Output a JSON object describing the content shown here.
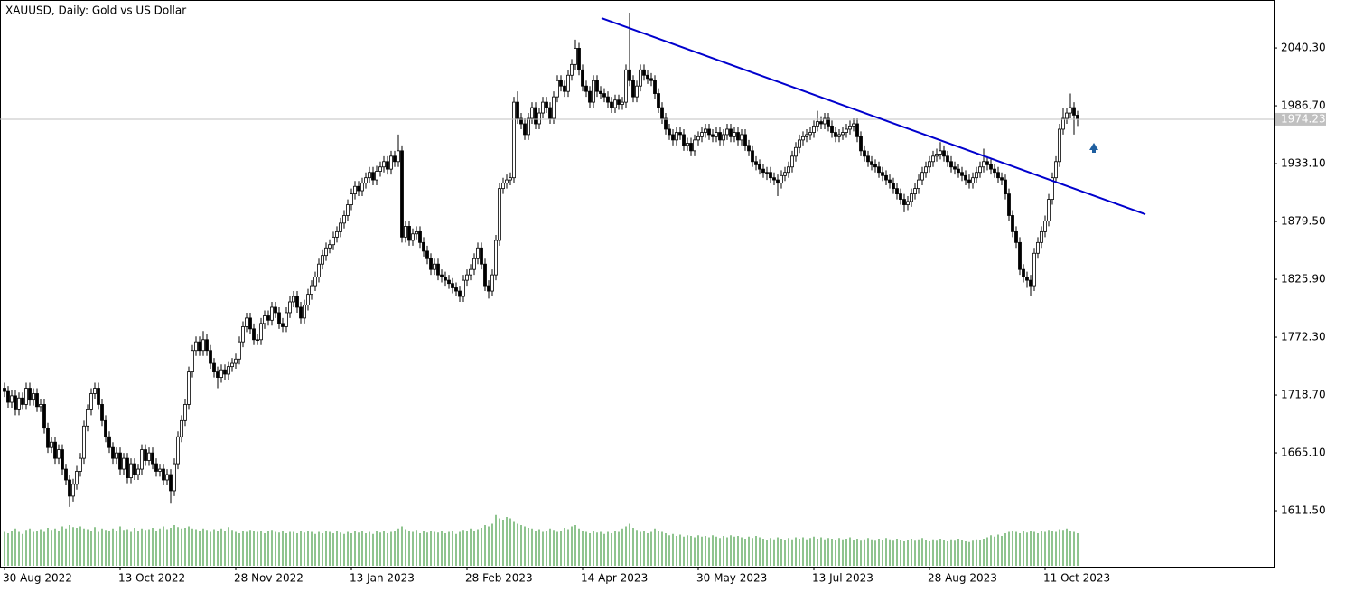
{
  "chart_data": {
    "type": "candlestick",
    "title": "XAUUSD, Daily:  Gold vs US Dollar",
    "open": [
      1725,
      1722,
      1712,
      1718,
      1705,
      1716,
      1710,
      1725,
      1714,
      1720,
      1708,
      1710,
      1688,
      1670,
      1675,
      1660,
      1668,
      1650,
      1640,
      1625,
      1636,
      1648,
      1660,
      1690,
      1705,
      1720,
      1725,
      1710,
      1695,
      1680,
      1670,
      1660,
      1665,
      1650,
      1660,
      1642,
      1655,
      1645,
      1650,
      1668,
      1658,
      1665,
      1655,
      1648,
      1650,
      1640,
      1645,
      1630,
      1655,
      1680,
      1695,
      1710,
      1740,
      1760,
      1768,
      1760,
      1770,
      1760,
      1748,
      1740,
      1735,
      1742,
      1738,
      1745,
      1748,
      1752,
      1768,
      1782,
      1790,
      1780,
      1770,
      1770,
      1785,
      1792,
      1788,
      1800,
      1795,
      1785,
      1782,
      1795,
      1805,
      1810,
      1800,
      1790,
      1802,
      1812,
      1820,
      1828,
      1840,
      1848,
      1855,
      1858,
      1865,
      1870,
      1878,
      1885,
      1895,
      1905,
      1912,
      1908,
      1915,
      1920,
      1925,
      1918,
      1926,
      1930,
      1935,
      1928,
      1940,
      1935,
      1945,
      1865,
      1875,
      1862,
      1868,
      1870,
      1860,
      1852,
      1845,
      1835,
      1840,
      1830,
      1828,
      1825,
      1822,
      1818,
      1815,
      1810,
      1825,
      1830,
      1835,
      1845,
      1855,
      1840,
      1820,
      1815,
      1830,
      1862,
      1910,
      1915,
      1918,
      1920,
      1990,
      1975,
      1970,
      1960,
      1975,
      1985,
      1970,
      1980,
      1990,
      1985,
      1975,
      1995,
      2010,
      2005,
      2000,
      2015,
      2025,
      2040,
      2020,
      2005,
      2000,
      1990,
      2010,
      2000,
      1998,
      1995,
      1990,
      1985,
      1992,
      1988,
      1990,
      2020,
      2010,
      1995,
      2005,
      2020,
      2015,
      2012,
      2010,
      1998,
      1985,
      1975,
      1965,
      1960,
      1955,
      1962,
      1960,
      1950,
      1952,
      1945,
      1955,
      1958,
      1962,
      1965,
      1960,
      1958,
      1962,
      1955,
      1960,
      1965,
      1958,
      1962,
      1955,
      1960,
      1950,
      1945,
      1935,
      1932,
      1928,
      1925,
      1925,
      1920,
      1918,
      1915,
      1922,
      1925,
      1930,
      1940,
      1948,
      1955,
      1958,
      1960,
      1962,
      1968,
      1972,
      1970,
      1975,
      1968,
      1962,
      1958,
      1960,
      1962,
      1965,
      1968,
      1970,
      1958,
      1945,
      1940,
      1935,
      1932,
      1930,
      1925,
      1922,
      1918,
      1915,
      1910,
      1905,
      1900,
      1895,
      1898,
      1905,
      1910,
      1918,
      1925,
      1930,
      1935,
      1940,
      1942,
      1945,
      1940,
      1935,
      1930,
      1928,
      1925,
      1922,
      1918,
      1915,
      1920,
      1925,
      1930,
      1935,
      1932,
      1928,
      1925,
      1920,
      1918,
      1905,
      1885,
      1870,
      1860,
      1835,
      1828,
      1825,
      1820,
      1850,
      1860,
      1870,
      1880,
      1900,
      1920,
      1935,
      1965,
      1975,
      1980,
      1985,
      1978
    ],
    "high": [
      1730,
      1727,
      1723,
      1723,
      1721,
      1721,
      1730,
      1730,
      1725,
      1725,
      1715,
      1715,
      1693,
      1680,
      1680,
      1673,
      1673,
      1655,
      1645,
      1641,
      1653,
      1665,
      1695,
      1710,
      1725,
      1730,
      1730,
      1715,
      1700,
      1685,
      1675,
      1670,
      1670,
      1665,
      1665,
      1660,
      1660,
      1655,
      1673,
      1673,
      1670,
      1670,
      1660,
      1655,
      1655,
      1650,
      1650,
      1660,
      1685,
      1700,
      1715,
      1745,
      1765,
      1773,
      1773,
      1778,
      1775,
      1765,
      1753,
      1745,
      1747,
      1747,
      1750,
      1753,
      1757,
      1773,
      1787,
      1795,
      1795,
      1785,
      1775,
      1790,
      1797,
      1797,
      1805,
      1805,
      1800,
      1790,
      1800,
      1810,
      1815,
      1815,
      1805,
      1807,
      1817,
      1825,
      1833,
      1845,
      1853,
      1860,
      1863,
      1870,
      1875,
      1883,
      1890,
      1900,
      1910,
      1917,
      1917,
      1920,
      1925,
      1930,
      1930,
      1931,
      1935,
      1940,
      1940,
      1945,
      1945,
      1960,
      1950,
      1880,
      1880,
      1873,
      1875,
      1875,
      1865,
      1857,
      1850,
      1845,
      1845,
      1835,
      1833,
      1830,
      1827,
      1823,
      1820,
      1830,
      1835,
      1840,
      1850,
      1860,
      1860,
      1845,
      1825,
      1835,
      1867,
      1915,
      1920,
      1923,
      1925,
      1995,
      2000,
      1980,
      1975,
      1980,
      1990,
      1990,
      1985,
      1995,
      1995,
      1990,
      2000,
      2015,
      2015,
      2010,
      2020,
      2030,
      2048,
      2045,
      2025,
      2010,
      2005,
      2015,
      2015,
      2005,
      2003,
      2000,
      1995,
      1997,
      1997,
      1995,
      2025,
      2073,
      2015,
      2010,
      2025,
      2025,
      2020,
      2017,
      2015,
      2003,
      1990,
      1980,
      1970,
      1965,
      1967,
      1967,
      1965,
      1957,
      1957,
      1960,
      1963,
      1967,
      1970,
      1970,
      1965,
      1967,
      1967,
      1965,
      1970,
      1970,
      1967,
      1967,
      1965,
      1965,
      1955,
      1950,
      1940,
      1937,
      1933,
      1930,
      1930,
      1925,
      1923,
      1927,
      1930,
      1935,
      1945,
      1953,
      1960,
      1963,
      1965,
      1967,
      1973,
      1982,
      1977,
      1980,
      1980,
      1973,
      1967,
      1965,
      1967,
      1970,
      1973,
      1975,
      1975,
      1963,
      1950,
      1945,
      1940,
      1937,
      1935,
      1930,
      1927,
      1923,
      1920,
      1915,
      1910,
      1905,
      1903,
      1910,
      1915,
      1923,
      1930,
      1935,
      1940,
      1945,
      1947,
      1953,
      1950,
      1945,
      1940,
      1935,
      1933,
      1930,
      1927,
      1923,
      1925,
      1930,
      1935,
      1947,
      1940,
      1937,
      1933,
      1930,
      1925,
      1923,
      1910,
      1890,
      1875,
      1865,
      1840,
      1833,
      1830,
      1855,
      1865,
      1875,
      1885,
      1905,
      1925,
      1940,
      1970,
      1985,
      1985,
      1998,
      1990,
      1982
    ],
    "low": [
      1717,
      1707,
      1707,
      1700,
      1700,
      1705,
      1705,
      1709,
      1709,
      1703,
      1703,
      1683,
      1665,
      1665,
      1655,
      1655,
      1645,
      1635,
      1615,
      1620,
      1631,
      1643,
      1655,
      1685,
      1700,
      1715,
      1705,
      1690,
      1675,
      1665,
      1655,
      1655,
      1645,
      1645,
      1637,
      1637,
      1640,
      1640,
      1645,
      1653,
      1653,
      1650,
      1643,
      1643,
      1635,
      1635,
      1618,
      1625,
      1650,
      1675,
      1690,
      1705,
      1735,
      1755,
      1755,
      1755,
      1755,
      1743,
      1735,
      1725,
      1730,
      1733,
      1733,
      1740,
      1743,
      1747,
      1763,
      1777,
      1775,
      1765,
      1765,
      1765,
      1780,
      1783,
      1783,
      1790,
      1780,
      1777,
      1777,
      1790,
      1800,
      1795,
      1785,
      1785,
      1797,
      1807,
      1815,
      1823,
      1835,
      1843,
      1850,
      1853,
      1860,
      1865,
      1873,
      1880,
      1890,
      1900,
      1903,
      1903,
      1910,
      1915,
      1913,
      1913,
      1921,
      1925,
      1923,
      1923,
      1930,
      1930,
      1860,
      1860,
      1857,
      1857,
      1863,
      1855,
      1847,
      1840,
      1830,
      1830,
      1825,
      1823,
      1820,
      1817,
      1813,
      1810,
      1805,
      1805,
      1820,
      1825,
      1830,
      1840,
      1835,
      1815,
      1808,
      1810,
      1825,
      1857,
      1905,
      1910,
      1913,
      1915,
      1970,
      1965,
      1955,
      1955,
      1970,
      1965,
      1965,
      1975,
      1980,
      1970,
      1970,
      1990,
      2000,
      1995,
      1995,
      2010,
      2020,
      2015,
      2000,
      1995,
      1985,
      1985,
      1995,
      1993,
      1990,
      1985,
      1980,
      1980,
      1983,
      1983,
      1985,
      2005,
      1990,
      1990,
      2000,
      2010,
      2007,
      2005,
      1993,
      1980,
      1970,
      1960,
      1955,
      1950,
      1950,
      1955,
      1945,
      1945,
      1940,
      1940,
      1950,
      1953,
      1957,
      1955,
      1953,
      1953,
      1950,
      1950,
      1955,
      1953,
      1953,
      1950,
      1950,
      1945,
      1940,
      1930,
      1927,
      1923,
      1920,
      1918,
      1915,
      1913,
      1903,
      1910,
      1917,
      1920,
      1925,
      1935,
      1943,
      1950,
      1953,
      1955,
      1957,
      1963,
      1965,
      1965,
      1963,
      1957,
      1953,
      1953,
      1955,
      1957,
      1960,
      1963,
      1953,
      1940,
      1935,
      1930,
      1927,
      1925,
      1920,
      1917,
      1913,
      1910,
      1905,
      1900,
      1895,
      1888,
      1890,
      1893,
      1900,
      1905,
      1913,
      1920,
      1925,
      1930,
      1935,
      1937,
      1935,
      1930,
      1925,
      1923,
      1920,
      1917,
      1913,
      1910,
      1910,
      1915,
      1920,
      1925,
      1927,
      1923,
      1920,
      1915,
      1913,
      1900,
      1880,
      1865,
      1855,
      1830,
      1823,
      1818,
      1810,
      1815,
      1845,
      1855,
      1865,
      1875,
      1895,
      1915,
      1930,
      1960,
      1970,
      1975,
      1960,
      1968
    ],
    "close": [
      1722,
      1712,
      1718,
      1705,
      1716,
      1710,
      1725,
      1714,
      1720,
      1708,
      1710,
      1688,
      1670,
      1675,
      1660,
      1668,
      1650,
      1640,
      1625,
      1636,
      1648,
      1660,
      1690,
      1705,
      1720,
      1725,
      1710,
      1695,
      1680,
      1670,
      1660,
      1665,
      1650,
      1660,
      1642,
      1655,
      1645,
      1650,
      1668,
      1658,
      1665,
      1655,
      1648,
      1650,
      1640,
      1645,
      1630,
      1655,
      1680,
      1695,
      1710,
      1740,
      1760,
      1768,
      1760,
      1770,
      1760,
      1748,
      1740,
      1735,
      1742,
      1738,
      1745,
      1748,
      1752,
      1768,
      1782,
      1790,
      1780,
      1770,
      1770,
      1785,
      1792,
      1788,
      1800,
      1795,
      1785,
      1782,
      1795,
      1805,
      1810,
      1800,
      1790,
      1802,
      1812,
      1820,
      1828,
      1840,
      1848,
      1855,
      1858,
      1865,
      1870,
      1878,
      1885,
      1895,
      1905,
      1912,
      1908,
      1915,
      1920,
      1925,
      1918,
      1926,
      1930,
      1935,
      1928,
      1940,
      1935,
      1945,
      1865,
      1875,
      1862,
      1868,
      1870,
      1860,
      1852,
      1845,
      1835,
      1840,
      1830,
      1828,
      1825,
      1822,
      1818,
      1815,
      1810,
      1825,
      1830,
      1835,
      1845,
      1855,
      1840,
      1820,
      1815,
      1830,
      1862,
      1910,
      1915,
      1918,
      1920,
      1990,
      1975,
      1970,
      1960,
      1975,
      1985,
      1970,
      1980,
      1990,
      1985,
      1975,
      1995,
      2010,
      2005,
      2000,
      2015,
      2025,
      2040,
      2020,
      2005,
      2000,
      1990,
      2010,
      2000,
      1998,
      1995,
      1990,
      1985,
      1992,
      1988,
      1990,
      2020,
      2010,
      1995,
      2005,
      2020,
      2015,
      2012,
      2010,
      1998,
      1985,
      1975,
      1965,
      1960,
      1955,
      1962,
      1960,
      1950,
      1952,
      1945,
      1955,
      1958,
      1962,
      1965,
      1960,
      1958,
      1962,
      1955,
      1960,
      1965,
      1958,
      1962,
      1955,
      1960,
      1950,
      1945,
      1935,
      1932,
      1928,
      1925,
      1925,
      1920,
      1918,
      1915,
      1922,
      1925,
      1930,
      1940,
      1948,
      1955,
      1958,
      1960,
      1962,
      1968,
      1972,
      1970,
      1975,
      1968,
      1962,
      1958,
      1960,
      1962,
      1965,
      1968,
      1970,
      1958,
      1945,
      1940,
      1935,
      1932,
      1930,
      1925,
      1922,
      1918,
      1915,
      1910,
      1905,
      1900,
      1895,
      1898,
      1905,
      1910,
      1918,
      1925,
      1930,
      1935,
      1940,
      1942,
      1945,
      1940,
      1935,
      1930,
      1928,
      1925,
      1922,
      1918,
      1915,
      1920,
      1925,
      1930,
      1935,
      1932,
      1928,
      1925,
      1920,
      1918,
      1905,
      1885,
      1870,
      1860,
      1835,
      1828,
      1825,
      1820,
      1850,
      1860,
      1870,
      1880,
      1900,
      1920,
      1935,
      1965,
      1975,
      1980,
      1985,
      1978,
      1974.23
    ],
    "volume": [
      50,
      48,
      52,
      55,
      50,
      47,
      53,
      55,
      50,
      52,
      54,
      50,
      56,
      53,
      55,
      52,
      58,
      55,
      60,
      57,
      56,
      58,
      55,
      54,
      52,
      57,
      50,
      55,
      53,
      52,
      55,
      52,
      58,
      53,
      54,
      50,
      56,
      52,
      55,
      53,
      54,
      56,
      52,
      55,
      58,
      54,
      56,
      60,
      57,
      55,
      56,
      58,
      55,
      54,
      52,
      55,
      53,
      50,
      54,
      52,
      55,
      52,
      57,
      53,
      50,
      48,
      52,
      50,
      53,
      51,
      50,
      52,
      48,
      51,
      53,
      50,
      49,
      52,
      48,
      50,
      50,
      48,
      52,
      49,
      51,
      50,
      47,
      50,
      48,
      52,
      50,
      48,
      51,
      49,
      47,
      50,
      48,
      52,
      49,
      51,
      48,
      50,
      47,
      52,
      49,
      51,
      48,
      50,
      52,
      55,
      58,
      54,
      52,
      50,
      53,
      48,
      51,
      49,
      52,
      50,
      49,
      51,
      48,
      50,
      52,
      47,
      50,
      53,
      51,
      55,
      52,
      54,
      56,
      60,
      58,
      62,
      75,
      70,
      68,
      72,
      70,
      66,
      62,
      60,
      58,
      56,
      55,
      52,
      54,
      50,
      52,
      55,
      53,
      50,
      52,
      56,
      54,
      58,
      60,
      55,
      52,
      50,
      48,
      51,
      49,
      50,
      47,
      50,
      48,
      52,
      50,
      55,
      58,
      62,
      56,
      53,
      50,
      52,
      48,
      50,
      55,
      52,
      50,
      48,
      45,
      47,
      44,
      46,
      43,
      45,
      44,
      42,
      45,
      43,
      44,
      42,
      45,
      43,
      41,
      44,
      42,
      45,
      43,
      44,
      42,
      40,
      43,
      41,
      44,
      42,
      40,
      38,
      41,
      39,
      42,
      40,
      38,
      41,
      39,
      42,
      40,
      42,
      39,
      41,
      43,
      40,
      42,
      39,
      41,
      40,
      38,
      41,
      39,
      40,
      42,
      38,
      40,
      37,
      39,
      41,
      39,
      37,
      40,
      38,
      41,
      39,
      37,
      40,
      38,
      36,
      38,
      40,
      37,
      39,
      41,
      38,
      36,
      39,
      37,
      40,
      38,
      36,
      39,
      37,
      40,
      38,
      36,
      35,
      37,
      39,
      38,
      40,
      42,
      45,
      43,
      46,
      44,
      48,
      50,
      52,
      50,
      48,
      52,
      49,
      51,
      50,
      48,
      52,
      50,
      53,
      52,
      50,
      54,
      53,
      55,
      52,
      50,
      48
    ],
    "volume_lim": [
      0,
      100
    ],
    "volume_color": "#1f8a1f",
    "up_color": "#ffffff",
    "down_color": "#000000",
    "xlim": [
      -1.25,
      351.25
    ],
    "ylim": [
      1559.6,
      2083.9
    ],
    "yticks": [
      {
        "value": 2040.3,
        "label": "2040.30"
      },
      {
        "value": 1986.7,
        "label": "1986.70"
      },
      {
        "value": 1933.1,
        "label": "1933.10"
      },
      {
        "value": 1879.5,
        "label": "1879.50"
      },
      {
        "value": 1825.9,
        "label": "1825.90"
      },
      {
        "value": 1772.3,
        "label": "1772.30"
      },
      {
        "value": 1718.7,
        "label": "1718.70"
      },
      {
        "value": 1665.1,
        "label": "1665.10"
      },
      {
        "value": 1611.5,
        "label": "1611.50"
      }
    ],
    "xticks": [
      {
        "value": 0,
        "label": "30 Aug 2022"
      },
      {
        "value": 32,
        "label": "13 Oct 2022"
      },
      {
        "value": 64,
        "label": "28 Nov 2022"
      },
      {
        "value": 96,
        "label": "13 Jan 2023"
      },
      {
        "value": 128,
        "label": "28 Feb 2023"
      },
      {
        "value": 160,
        "label": "14 Apr 2023"
      },
      {
        "value": 192,
        "label": "30 May 2023"
      },
      {
        "value": 224,
        "label": "13 Jul 2023"
      },
      {
        "value": 256,
        "label": "28 Aug 2023"
      },
      {
        "value": 288,
        "label": "11 Oct 2023"
      }
    ],
    "trendline": {
      "x": [
        165.25,
        315.75
      ],
      "y": [
        2067.9,
        1886.2
      ],
      "color": "#0000cd"
    },
    "last_price_line_color": "#c0c0c0"
  }
}
